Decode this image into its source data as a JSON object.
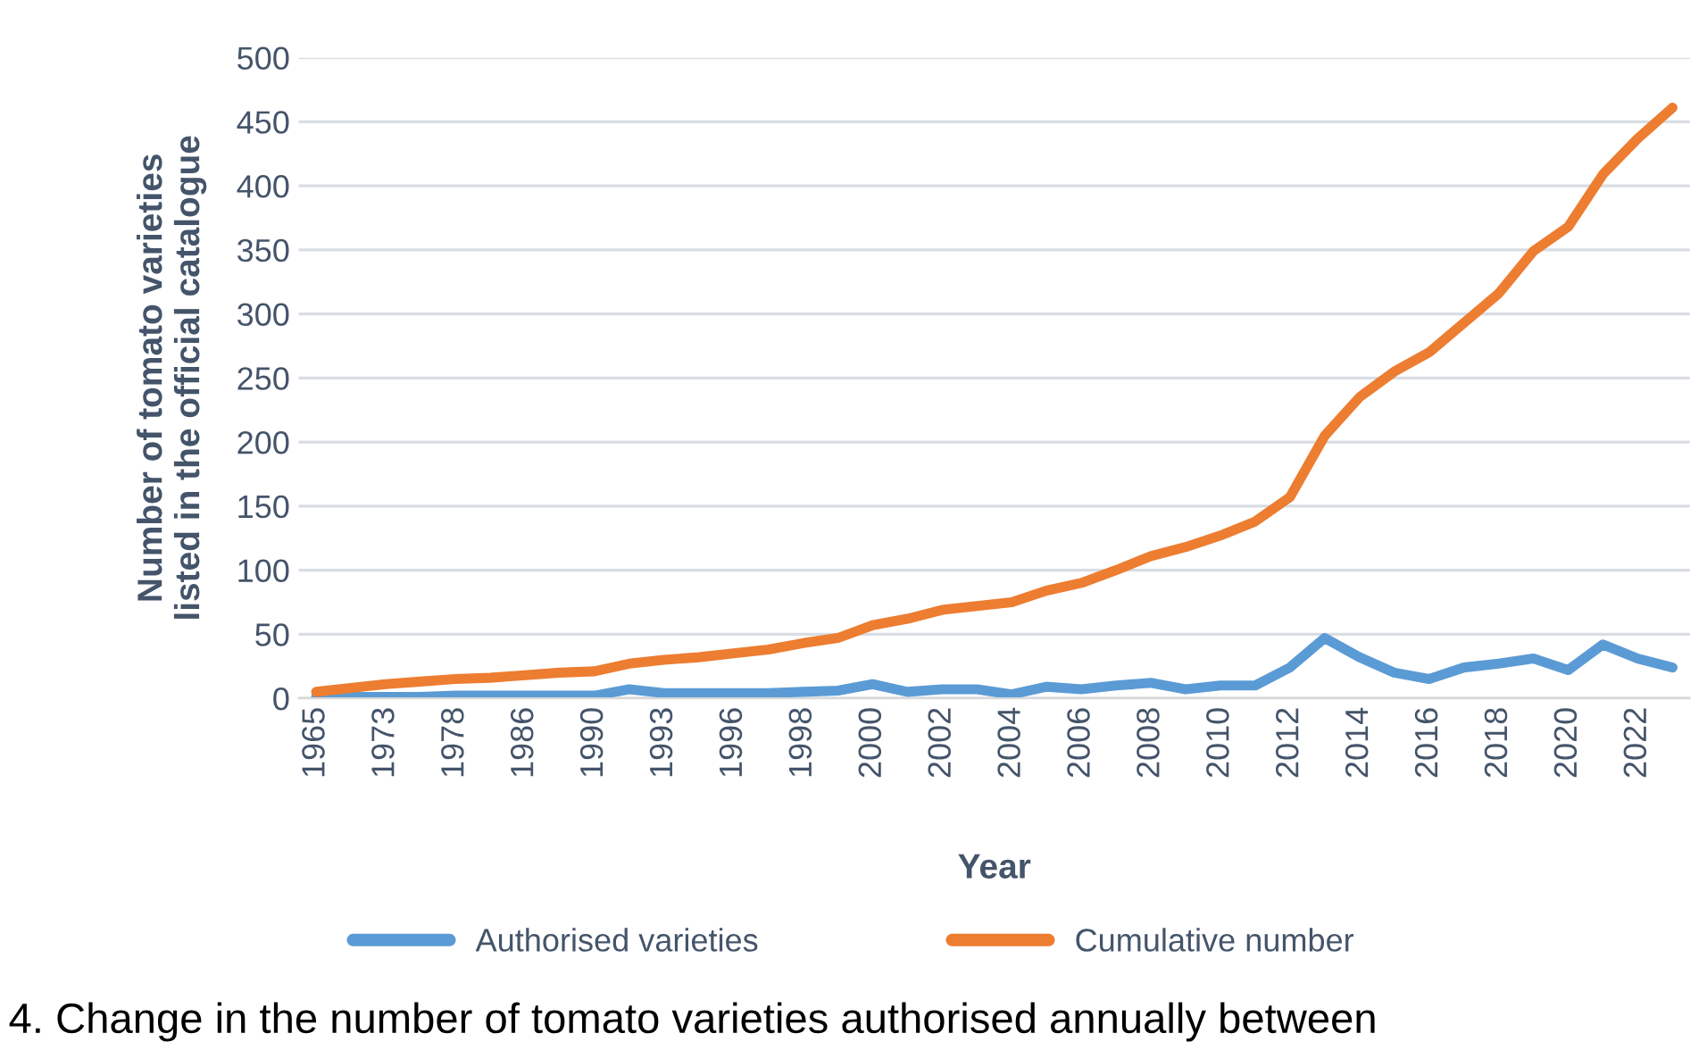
{
  "chart_data": {
    "type": "line",
    "xlabel": "Year",
    "ylabel": "Number of tomato varieties\nlisted in the official catalogue",
    "categories": [
      "1965",
      null,
      "1973",
      null,
      "1978",
      null,
      "1986",
      null,
      "1990",
      null,
      "1993",
      null,
      "1996",
      null,
      "1998",
      null,
      "2000",
      null,
      "2002",
      null,
      "2004",
      null,
      "2006",
      null,
      "2008",
      null,
      "2010",
      null,
      "2012",
      null,
      "2014",
      null,
      "2016",
      null,
      "2018",
      null,
      "2020",
      null,
      "2022",
      null
    ],
    "series": [
      {
        "name": "Authorised varieties",
        "color": "#5b9bd5",
        "values": [
          1,
          1,
          1,
          1,
          2,
          2,
          2,
          2,
          2,
          7,
          4,
          4,
          4,
          4,
          5,
          6,
          11,
          5,
          7,
          7,
          3,
          9,
          7,
          10,
          12,
          7,
          10,
          10,
          24,
          47,
          32,
          20,
          15,
          24,
          27,
          31,
          22,
          42,
          31,
          24
        ]
      },
      {
        "name": "Cumulative number",
        "color": "#ed7d31",
        "values": [
          5,
          8,
          11,
          13,
          15,
          16,
          18,
          20,
          21,
          27,
          30,
          32,
          35,
          38,
          43,
          47,
          57,
          62,
          69,
          72,
          75,
          84,
          90,
          100,
          111,
          118,
          127,
          138,
          157,
          205,
          235,
          255,
          270,
          293,
          316,
          349,
          368,
          409,
          437,
          461
        ]
      }
    ],
    "ylim": [
      0,
      500
    ],
    "yticks": [
      0,
      50,
      100,
      150,
      200,
      250,
      300,
      350,
      400,
      450,
      500
    ],
    "grid": "y",
    "legend": "bottom",
    "marker": "none",
    "line_style": "solid",
    "annotations": [
      "4. Change in the number of tomato varieties authorised annually between"
    ]
  }
}
